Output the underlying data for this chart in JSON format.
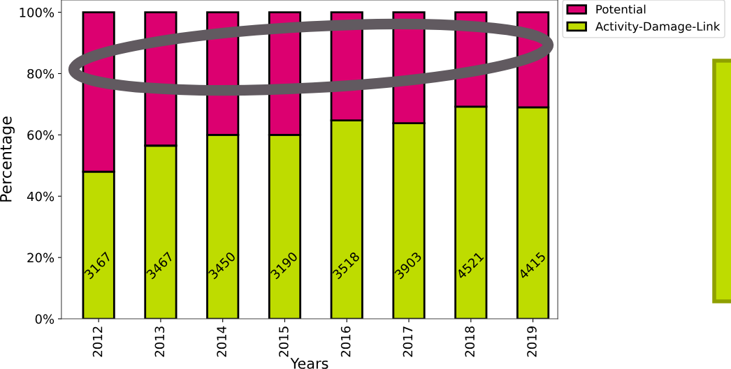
{
  "chart_data": {
    "type": "bar",
    "stacked": true,
    "xlabel": "Years",
    "ylabel": "Percentage",
    "categories": [
      "2012",
      "2013",
      "2014",
      "2015",
      "2016",
      "2017",
      "2018",
      "2019"
    ],
    "series": [
      {
        "name": "Activity-Damage-Link",
        "color": "#bedc00",
        "values": [
          48,
          56.5,
          60,
          60,
          64.7,
          63.8,
          69.2,
          69
        ]
      },
      {
        "name": "Potential",
        "color": "#dc0070",
        "values": [
          52,
          43.5,
          40,
          40,
          35.3,
          36.2,
          30.8,
          31
        ]
      }
    ],
    "ylim": [
      0,
      104
    ],
    "yticks": [
      {
        "value": 0,
        "label": "0%"
      },
      {
        "value": 20,
        "label": "20%"
      },
      {
        "value": 40,
        "label": "40%"
      },
      {
        "value": 60,
        "label": "60%"
      },
      {
        "value": 80,
        "label": "80%"
      },
      {
        "value": 100,
        "label": "100%"
      }
    ],
    "annotations": [
      "3167",
      "3467",
      "3450",
      "3190",
      "3518",
      "3903",
      "4521",
      "4415"
    ],
    "legend": "top right",
    "grid": false
  }
}
